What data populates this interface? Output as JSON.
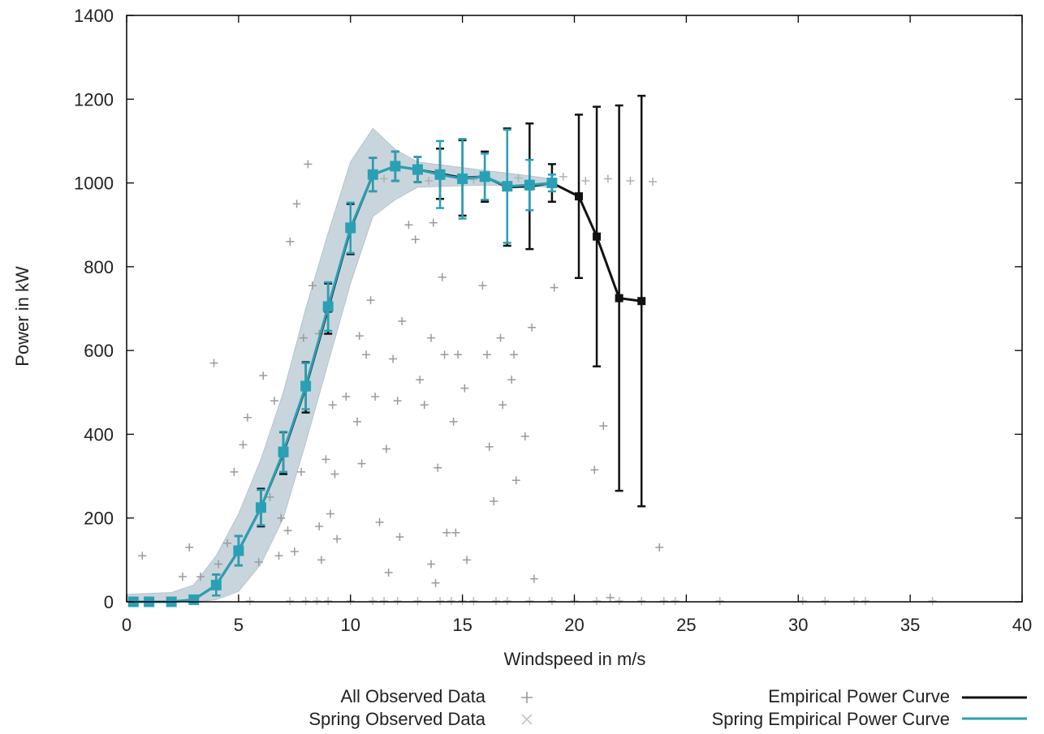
{
  "chart_data": {
    "type": "scatter",
    "title": "",
    "xlabel": "Windspeed in m/s",
    "ylabel": "Power in kW",
    "xlim": [
      0,
      40
    ],
    "ylim": [
      0,
      1400
    ],
    "xticks": [
      0,
      5,
      10,
      15,
      20,
      25,
      30,
      35,
      40
    ],
    "yticks": [
      0,
      200,
      400,
      600,
      800,
      1000,
      1200,
      1400
    ],
    "grid": false,
    "legend_position": "bottom",
    "legend": [
      {
        "label": "All Observed Data",
        "marker": "+",
        "color": "#9a9a9a"
      },
      {
        "label": "Spring Observed Data",
        "marker": "x",
        "color": "#c4c4c4"
      },
      {
        "label": "Empirical Power Curve",
        "marker": "line",
        "color": "#111111"
      },
      {
        "label": "Spring Empirical Power Curve",
        "marker": "line",
        "color": "#2aa0b4"
      }
    ],
    "series": [
      {
        "name": "Empirical Power Curve",
        "color": "#111111",
        "x": [
          0.3,
          1,
          2,
          3,
          4,
          5,
          6,
          7,
          8,
          9,
          10,
          11,
          12,
          13,
          14,
          15,
          16,
          17,
          18,
          19,
          20.2,
          21,
          22,
          23
        ],
        "y": [
          0,
          0,
          0,
          5,
          40,
          122,
          225,
          355,
          512,
          700,
          890,
          1020,
          1040,
          1032,
          1022,
          1012,
          1015,
          990,
          992,
          1000,
          968,
          872,
          725,
          718
        ],
        "err": [
          0,
          0,
          0,
          8,
          25,
          35,
          45,
          50,
          60,
          60,
          60,
          40,
          35,
          30,
          60,
          90,
          60,
          140,
          150,
          45,
          195,
          310,
          460,
          490
        ]
      },
      {
        "name": "Spring Empirical Power Curve",
        "color": "#2aa0b4",
        "x": [
          0.3,
          1,
          2,
          3,
          4,
          5,
          6,
          7,
          8,
          9,
          10,
          11,
          12,
          13,
          14,
          15,
          16,
          17,
          18,
          19
        ],
        "y": [
          0,
          0,
          0,
          5,
          40,
          122,
          225,
          358,
          515,
          705,
          893,
          1020,
          1040,
          1032,
          1020,
          1010,
          1015,
          992,
          995,
          1000
        ],
        "err": [
          0,
          0,
          0,
          8,
          25,
          35,
          42,
          48,
          55,
          58,
          60,
          40,
          35,
          30,
          80,
          95,
          55,
          135,
          60,
          20
        ]
      }
    ],
    "band": {
      "name": "Spring Observed Data",
      "color": "#c9d5dd",
      "upper": [
        [
          0,
          18
        ],
        [
          2,
          22
        ],
        [
          3,
          40
        ],
        [
          4,
          110
        ],
        [
          5,
          210
        ],
        [
          6,
          340
        ],
        [
          7,
          500
        ],
        [
          8,
          700
        ],
        [
          9,
          880
        ],
        [
          10,
          1050
        ],
        [
          11,
          1130
        ],
        [
          12,
          1080
        ],
        [
          13,
          1050
        ],
        [
          16,
          1030
        ],
        [
          19,
          1010
        ]
      ],
      "lower": [
        [
          19,
          990
        ],
        [
          16,
          995
        ],
        [
          13,
          990
        ],
        [
          12,
          960
        ],
        [
          11,
          920
        ],
        [
          10,
          760
        ],
        [
          9,
          570
        ],
        [
          8,
          380
        ],
        [
          7,
          200
        ],
        [
          6,
          90
        ],
        [
          5,
          25
        ],
        [
          4,
          5
        ],
        [
          3,
          0
        ],
        [
          0,
          0
        ]
      ]
    },
    "scatter_points": [
      [
        0.7,
        110
      ],
      [
        2.5,
        60
      ],
      [
        2.8,
        130
      ],
      [
        3.9,
        570
      ],
      [
        4.1,
        90
      ],
      [
        5.2,
        375
      ],
      [
        5.4,
        440
      ],
      [
        4.8,
        310
      ],
      [
        6.1,
        540
      ],
      [
        6.6,
        480
      ],
      [
        7.3,
        860
      ],
      [
        7.6,
        950
      ],
      [
        8.1,
        1045
      ],
      [
        8.3,
        755
      ],
      [
        7.9,
        630
      ],
      [
        8.6,
        640
      ],
      [
        9.2,
        470
      ],
      [
        9.8,
        490
      ],
      [
        10.4,
        635
      ],
      [
        10.3,
        430
      ],
      [
        10.5,
        330
      ],
      [
        11.1,
        490
      ],
      [
        11.6,
        365
      ],
      [
        12.1,
        480
      ],
      [
        11.9,
        580
      ],
      [
        12.3,
        670
      ],
      [
        11.3,
        190
      ],
      [
        11.7,
        70
      ],
      [
        12.2,
        155
      ],
      [
        13.1,
        530
      ],
      [
        13.3,
        470
      ],
      [
        13.6,
        630
      ],
      [
        13.9,
        320
      ],
      [
        13.6,
        90
      ],
      [
        14.1,
        775
      ],
      [
        14.2,
        590
      ],
      [
        14.6,
        430
      ],
      [
        14.8,
        590
      ],
      [
        15.1,
        510
      ],
      [
        15.2,
        100
      ],
      [
        14.3,
        165
      ],
      [
        14.7,
        165
      ],
      [
        13.8,
        45
      ],
      [
        15.9,
        755
      ],
      [
        16.1,
        590
      ],
      [
        16.4,
        240
      ],
      [
        16.8,
        470
      ],
      [
        16.7,
        630
      ],
      [
        16.2,
        370
      ],
      [
        17.3,
        590
      ],
      [
        17.4,
        290
      ],
      [
        17.2,
        530
      ],
      [
        17.8,
        395
      ],
      [
        18.2,
        55
      ],
      [
        18.1,
        655
      ],
      [
        19.1,
        750
      ],
      [
        20.9,
        315
      ],
      [
        21.3,
        420
      ],
      [
        21.6,
        10
      ],
      [
        23.8,
        130
      ],
      [
        8.6,
        180
      ],
      [
        8.9,
        340
      ],
      [
        9.1,
        210
      ],
      [
        7.2,
        170
      ],
      [
        7.5,
        120
      ],
      [
        6.8,
        110
      ],
      [
        8.7,
        100
      ],
      [
        9.4,
        150
      ],
      [
        7.8,
        310
      ],
      [
        6.4,
        250
      ],
      [
        3.3,
        60
      ],
      [
        4.5,
        140
      ],
      [
        5.9,
        95
      ],
      [
        6.9,
        200
      ],
      [
        9.3,
        305
      ],
      [
        10.9,
        720
      ],
      [
        10.7,
        590
      ],
      [
        12.6,
        900
      ],
      [
        12.9,
        865
      ],
      [
        13.7,
        905
      ]
    ],
    "zero_points": [
      5.5,
      7.3,
      8.0,
      8.5,
      9.0,
      10.0,
      11.0,
      11.5,
      12.1,
      13.0,
      14.0,
      14.5,
      15.0,
      15.5,
      16.5,
      17.0,
      18.0,
      19.0,
      20.0,
      21.0,
      22.0,
      23.0,
      24.0,
      24.5,
      26.5,
      30.2,
      31.2,
      32.5,
      33.0,
      36.0
    ],
    "upper_stray": [
      [
        11.5,
        1010
      ],
      [
        13.5,
        1005
      ],
      [
        15.5,
        1008
      ],
      [
        17.5,
        1012
      ],
      [
        19.5,
        1015
      ],
      [
        20.5,
        1005
      ],
      [
        21.5,
        1010
      ],
      [
        22.5,
        1005
      ],
      [
        23.5,
        1003
      ]
    ]
  }
}
